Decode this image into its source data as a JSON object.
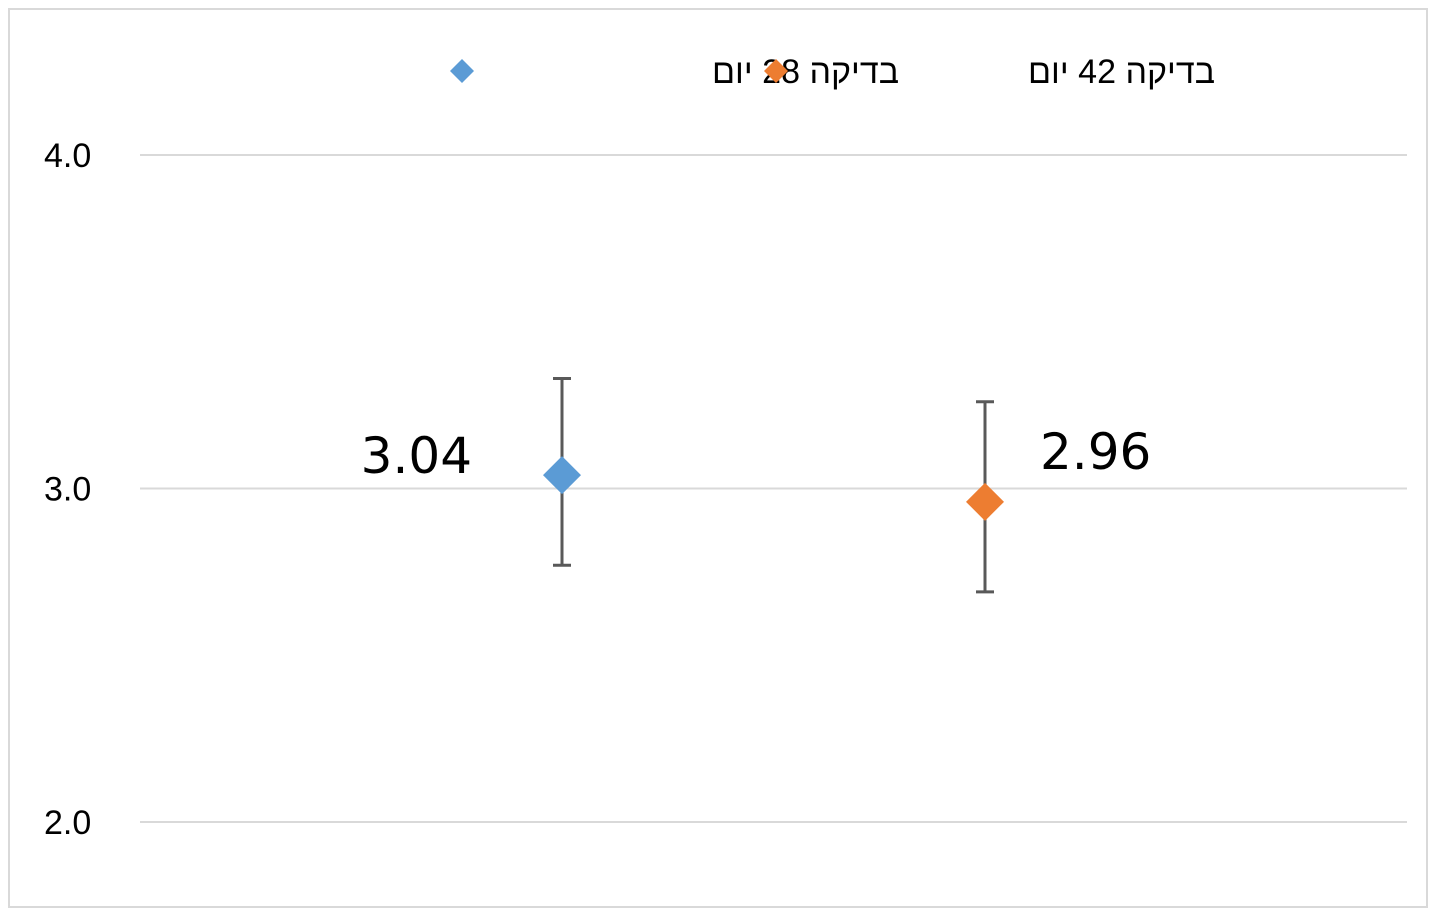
{
  "chart_data": {
    "type": "scatter",
    "title": "",
    "xlabel": "",
    "ylabel": "",
    "ylim": [
      2.0,
      4.0
    ],
    "y_ticks": [
      "2.0",
      "3.0",
      "4.0"
    ],
    "grid": true,
    "legend_position": "top",
    "series": [
      {
        "name": "בדיקה 28 יום",
        "value": 3.04,
        "label": "3.04",
        "error_low": 2.77,
        "error_high": 3.33,
        "color": "#5b9bd5",
        "marker": "diamond"
      },
      {
        "name": "בדיקה 42 יום",
        "value": 2.96,
        "label": "2.96",
        "error_low": 2.69,
        "error_high": 3.26,
        "color": "#ed7d31",
        "marker": "diamond"
      }
    ],
    "colors": {
      "gridline": "#d9d9d9",
      "error_bar": "#595959"
    }
  }
}
